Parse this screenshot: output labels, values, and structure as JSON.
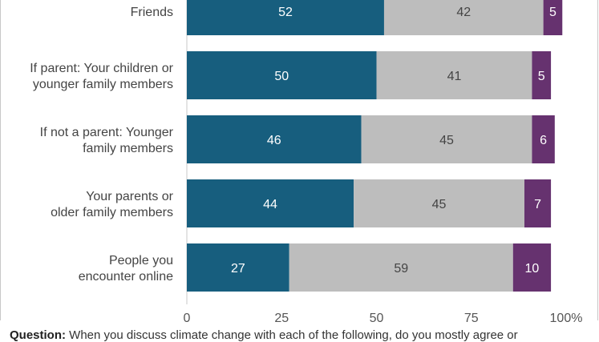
{
  "question": {
    "label": "Question:",
    "text": "When you discuss climate change with each of the following, do you mostly agree or"
  },
  "colors": {
    "agree": "#175e7e",
    "neutral": "#bdbdbd",
    "disagree": "#66326f",
    "axis_text": "#555555",
    "label_text": "#444444",
    "frame": "#c8c8c8"
  },
  "chart_data": {
    "type": "bar",
    "orientation": "horizontal",
    "stacked": true,
    "categories": [
      "Friends",
      "If parent: Your children or younger family members",
      "If not a parent: Younger family members",
      "Your parents or older family members",
      "People you encounter online"
    ],
    "category_lines": [
      [
        "Friends"
      ],
      [
        "If parent: Your children or",
        "younger family members"
      ],
      [
        "If not a parent: Younger",
        "family members"
      ],
      [
        "Your parents or",
        "older family members"
      ],
      [
        "People you",
        "encounter online"
      ]
    ],
    "series": [
      {
        "key": "agree",
        "values": [
          52,
          50,
          46,
          44,
          27
        ]
      },
      {
        "key": "neutral",
        "values": [
          42,
          41,
          45,
          45,
          59
        ]
      },
      {
        "key": "disagree",
        "values": [
          5,
          5,
          6,
          7,
          10
        ]
      }
    ],
    "xlim": [
      0,
      100
    ],
    "xticks": [
      "0",
      "25",
      "50",
      "75",
      "100%"
    ],
    "xtick_values": [
      0,
      25,
      50,
      75,
      100
    ],
    "grid": false,
    "legend": "none"
  }
}
